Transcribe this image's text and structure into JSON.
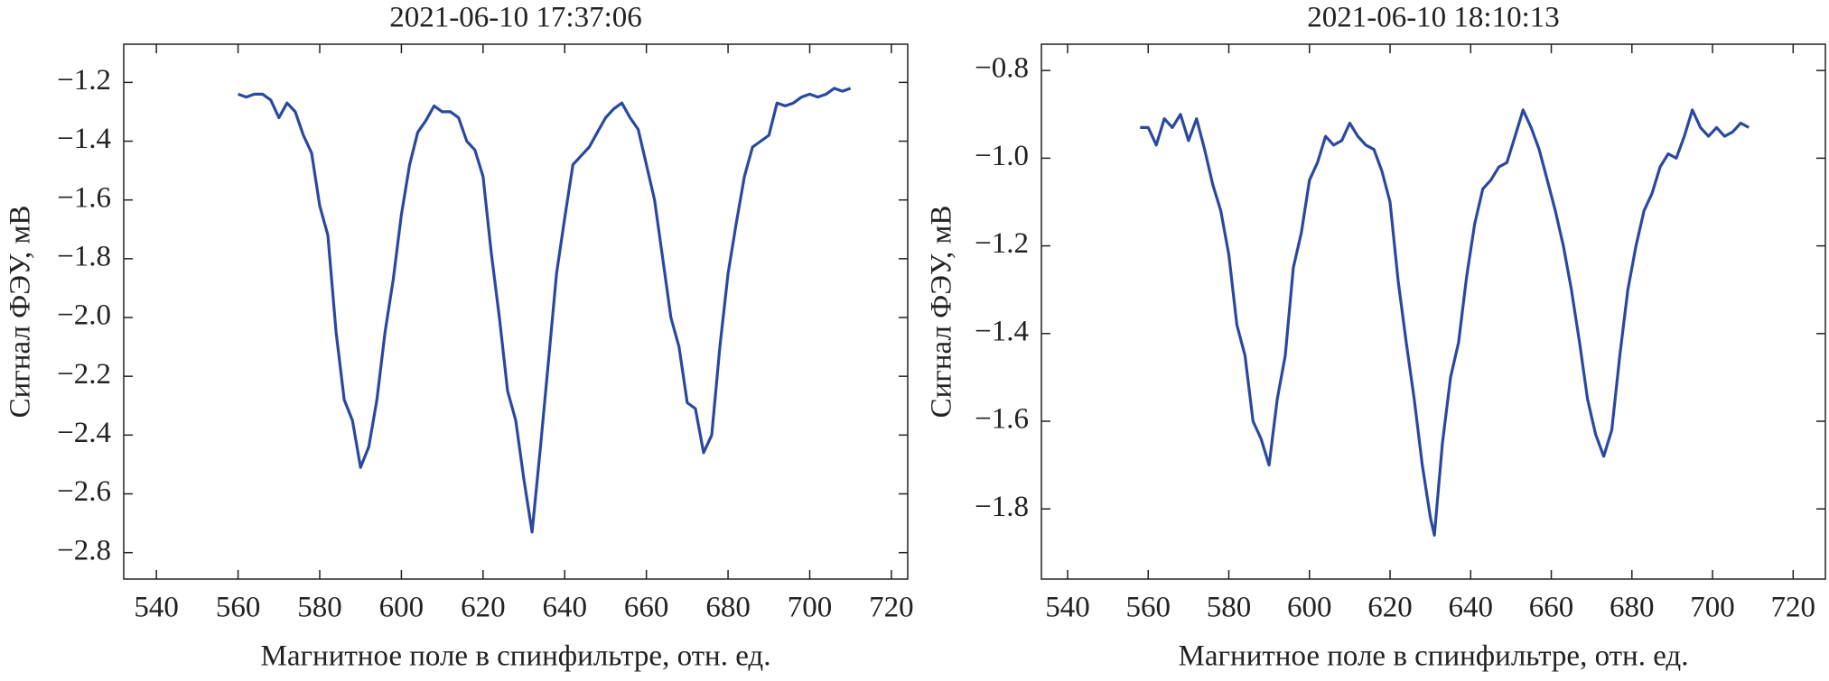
{
  "chart_data": [
    {
      "type": "line",
      "title": "2021-06-10 17:37:06",
      "xlabel": "Магнитное поле в спинфильтре, отн. ед.",
      "ylabel": "Сигнал ФЭУ, мВ",
      "color": "#2a48a0",
      "x": [
        560,
        562,
        564,
        566,
        568,
        570,
        572,
        574,
        576,
        578,
        580,
        582,
        584,
        586,
        588,
        590,
        592,
        594,
        596,
        598,
        600,
        602,
        604,
        606,
        608,
        610,
        612,
        614,
        616,
        618,
        620,
        622,
        624,
        626,
        628,
        630,
        632,
        634,
        636,
        638,
        640,
        642,
        644,
        646,
        648,
        650,
        652,
        654,
        656,
        658,
        660,
        662,
        664,
        666,
        668,
        670,
        672,
        674,
        676,
        678,
        680,
        682,
        684,
        686,
        688,
        690,
        692,
        694,
        696,
        698,
        700,
        702,
        704,
        706,
        708,
        710
      ],
      "values": [
        -1.24,
        -1.25,
        -1.24,
        -1.24,
        -1.26,
        -1.32,
        -1.27,
        -1.3,
        -1.38,
        -1.44,
        -1.62,
        -1.72,
        -2.05,
        -2.28,
        -2.35,
        -2.51,
        -2.44,
        -2.28,
        -2.05,
        -1.87,
        -1.65,
        -1.48,
        -1.37,
        -1.33,
        -1.28,
        -1.3,
        -1.3,
        -1.32,
        -1.4,
        -1.43,
        -1.52,
        -1.78,
        -2.0,
        -2.25,
        -2.35,
        -2.55,
        -2.73,
        -2.45,
        -2.15,
        -1.85,
        -1.66,
        -1.48,
        -1.45,
        -1.42,
        -1.37,
        -1.32,
        -1.29,
        -1.27,
        -1.32,
        -1.36,
        -1.48,
        -1.6,
        -1.8,
        -2.0,
        -2.1,
        -2.29,
        -2.31,
        -2.46,
        -2.4,
        -2.1,
        -1.85,
        -1.68,
        -1.52,
        -1.42,
        -1.4,
        -1.38,
        -1.27,
        -1.28,
        -1.27,
        -1.25,
        -1.24,
        -1.25,
        -1.24,
        -1.22,
        -1.23,
        -1.22
      ],
      "xlim": [
        532,
        724
      ],
      "xticks": [
        540,
        560,
        580,
        600,
        620,
        640,
        660,
        680,
        700,
        720
      ],
      "ylim": [
        -2.89,
        -1.07
      ],
      "yticks": [
        {
          "value": -2.8,
          "label": "−2.8"
        },
        {
          "value": -2.6,
          "label": "−2.6"
        },
        {
          "value": -2.4,
          "label": "−2.4"
        },
        {
          "value": -2.2,
          "label": "−2.2"
        },
        {
          "value": -2.0,
          "label": "−2.0"
        },
        {
          "value": -1.8,
          "label": "−1.8"
        },
        {
          "value": -1.6,
          "label": "−1.6"
        },
        {
          "value": -1.4,
          "label": "−1.4"
        },
        {
          "value": -1.2,
          "label": "−1.2"
        }
      ]
    },
    {
      "type": "line",
      "title": "2021-06-10 18:10:13",
      "xlabel": "Магнитное поле в спинфильтре, отн. ед.",
      "ylabel": "Сигнал ФЭУ, мВ",
      "color": "#2a48a0",
      "x": [
        558,
        560,
        562,
        564,
        566,
        568,
        570,
        572,
        574,
        576,
        578,
        580,
        582,
        584,
        586,
        588,
        590,
        592,
        594,
        596,
        598,
        600,
        602,
        604,
        606,
        608,
        610,
        612,
        614,
        616,
        618,
        620,
        622,
        624,
        626,
        628,
        630,
        631,
        633,
        635,
        637,
        639,
        641,
        643,
        645,
        647,
        649,
        651,
        653,
        655,
        657,
        659,
        661,
        663,
        665,
        667,
        669,
        671,
        673,
        675,
        677,
        679,
        681,
        683,
        685,
        687,
        689,
        691,
        693,
        695,
        697,
        699,
        701,
        703,
        705,
        707,
        709
      ],
      "values": [
        -0.93,
        -0.93,
        -0.97,
        -0.91,
        -0.93,
        -0.9,
        -0.96,
        -0.91,
        -0.98,
        -1.06,
        -1.12,
        -1.22,
        -1.38,
        -1.45,
        -1.6,
        -1.64,
        -1.7,
        -1.55,
        -1.45,
        -1.25,
        -1.17,
        -1.05,
        -1.01,
        -0.95,
        -0.97,
        -0.96,
        -0.92,
        -0.95,
        -0.97,
        -0.98,
        -1.03,
        -1.1,
        -1.28,
        -1.42,
        -1.55,
        -1.7,
        -1.82,
        -1.86,
        -1.65,
        -1.5,
        -1.42,
        -1.27,
        -1.15,
        -1.07,
        -1.05,
        -1.02,
        -1.01,
        -0.95,
        -0.89,
        -0.93,
        -0.98,
        -1.05,
        -1.12,
        -1.2,
        -1.3,
        -1.42,
        -1.55,
        -1.63,
        -1.68,
        -1.62,
        -1.45,
        -1.3,
        -1.2,
        -1.12,
        -1.08,
        -1.02,
        -0.99,
        -1.0,
        -0.95,
        -0.89,
        -0.93,
        -0.95,
        -0.93,
        -0.95,
        -0.94,
        -0.92,
        -0.93
      ],
      "xlim": [
        533.5,
        728
      ],
      "xticks": [
        540,
        560,
        580,
        600,
        620,
        640,
        660,
        680,
        700,
        720
      ],
      "ylim": [
        -1.96,
        -0.74
      ],
      "yticks": [
        {
          "value": -1.8,
          "label": "−1.8"
        },
        {
          "value": -1.6,
          "label": "−1.6"
        },
        {
          "value": -1.4,
          "label": "−1.4"
        },
        {
          "value": -1.2,
          "label": "−1.2"
        },
        {
          "value": -1.0,
          "label": "−1.0"
        },
        {
          "value": -0.8,
          "label": "−0.8"
        }
      ]
    }
  ]
}
